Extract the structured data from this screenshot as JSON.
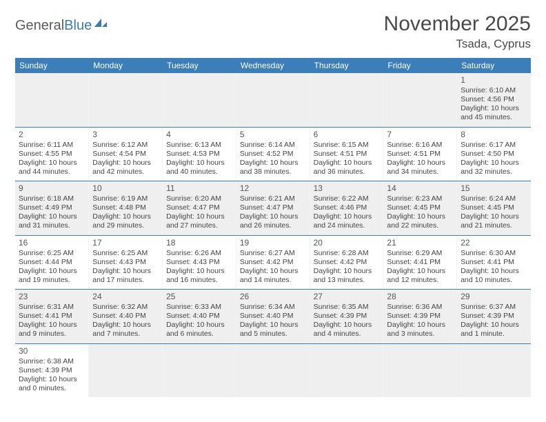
{
  "logo": {
    "general": "General",
    "blue": "Blue"
  },
  "title": "November 2025",
  "location": "Tsada, Cyprus",
  "colors": {
    "header_bg": "#3b7eb9",
    "header_text": "#ffffff",
    "row_shade": "#efefef",
    "border": "#3b7eb9",
    "text": "#454545"
  },
  "day_headers": [
    "Sunday",
    "Monday",
    "Tuesday",
    "Wednesday",
    "Thursday",
    "Friday",
    "Saturday"
  ],
  "weeks": [
    {
      "shaded": true,
      "cells": [
        null,
        null,
        null,
        null,
        null,
        null,
        {
          "n": "1",
          "rise": "Sunrise: 6:10 AM",
          "set": "Sunset: 4:56 PM",
          "dl1": "Daylight: 10 hours",
          "dl2": "and 45 minutes."
        }
      ]
    },
    {
      "shaded": false,
      "cells": [
        {
          "n": "2",
          "rise": "Sunrise: 6:11 AM",
          "set": "Sunset: 4:55 PM",
          "dl1": "Daylight: 10 hours",
          "dl2": "and 44 minutes."
        },
        {
          "n": "3",
          "rise": "Sunrise: 6:12 AM",
          "set": "Sunset: 4:54 PM",
          "dl1": "Daylight: 10 hours",
          "dl2": "and 42 minutes."
        },
        {
          "n": "4",
          "rise": "Sunrise: 6:13 AM",
          "set": "Sunset: 4:53 PM",
          "dl1": "Daylight: 10 hours",
          "dl2": "and 40 minutes."
        },
        {
          "n": "5",
          "rise": "Sunrise: 6:14 AM",
          "set": "Sunset: 4:52 PM",
          "dl1": "Daylight: 10 hours",
          "dl2": "and 38 minutes."
        },
        {
          "n": "6",
          "rise": "Sunrise: 6:15 AM",
          "set": "Sunset: 4:51 PM",
          "dl1": "Daylight: 10 hours",
          "dl2": "and 36 minutes."
        },
        {
          "n": "7",
          "rise": "Sunrise: 6:16 AM",
          "set": "Sunset: 4:51 PM",
          "dl1": "Daylight: 10 hours",
          "dl2": "and 34 minutes."
        },
        {
          "n": "8",
          "rise": "Sunrise: 6:17 AM",
          "set": "Sunset: 4:50 PM",
          "dl1": "Daylight: 10 hours",
          "dl2": "and 32 minutes."
        }
      ]
    },
    {
      "shaded": true,
      "cells": [
        {
          "n": "9",
          "rise": "Sunrise: 6:18 AM",
          "set": "Sunset: 4:49 PM",
          "dl1": "Daylight: 10 hours",
          "dl2": "and 31 minutes."
        },
        {
          "n": "10",
          "rise": "Sunrise: 6:19 AM",
          "set": "Sunset: 4:48 PM",
          "dl1": "Daylight: 10 hours",
          "dl2": "and 29 minutes."
        },
        {
          "n": "11",
          "rise": "Sunrise: 6:20 AM",
          "set": "Sunset: 4:47 PM",
          "dl1": "Daylight: 10 hours",
          "dl2": "and 27 minutes."
        },
        {
          "n": "12",
          "rise": "Sunrise: 6:21 AM",
          "set": "Sunset: 4:47 PM",
          "dl1": "Daylight: 10 hours",
          "dl2": "and 26 minutes."
        },
        {
          "n": "13",
          "rise": "Sunrise: 6:22 AM",
          "set": "Sunset: 4:46 PM",
          "dl1": "Daylight: 10 hours",
          "dl2": "and 24 minutes."
        },
        {
          "n": "14",
          "rise": "Sunrise: 6:23 AM",
          "set": "Sunset: 4:45 PM",
          "dl1": "Daylight: 10 hours",
          "dl2": "and 22 minutes."
        },
        {
          "n": "15",
          "rise": "Sunrise: 6:24 AM",
          "set": "Sunset: 4:45 PM",
          "dl1": "Daylight: 10 hours",
          "dl2": "and 21 minutes."
        }
      ]
    },
    {
      "shaded": false,
      "cells": [
        {
          "n": "16",
          "rise": "Sunrise: 6:25 AM",
          "set": "Sunset: 4:44 PM",
          "dl1": "Daylight: 10 hours",
          "dl2": "and 19 minutes."
        },
        {
          "n": "17",
          "rise": "Sunrise: 6:25 AM",
          "set": "Sunset: 4:43 PM",
          "dl1": "Daylight: 10 hours",
          "dl2": "and 17 minutes."
        },
        {
          "n": "18",
          "rise": "Sunrise: 6:26 AM",
          "set": "Sunset: 4:43 PM",
          "dl1": "Daylight: 10 hours",
          "dl2": "and 16 minutes."
        },
        {
          "n": "19",
          "rise": "Sunrise: 6:27 AM",
          "set": "Sunset: 4:42 PM",
          "dl1": "Daylight: 10 hours",
          "dl2": "and 14 minutes."
        },
        {
          "n": "20",
          "rise": "Sunrise: 6:28 AM",
          "set": "Sunset: 4:42 PM",
          "dl1": "Daylight: 10 hours",
          "dl2": "and 13 minutes."
        },
        {
          "n": "21",
          "rise": "Sunrise: 6:29 AM",
          "set": "Sunset: 4:41 PM",
          "dl1": "Daylight: 10 hours",
          "dl2": "and 12 minutes."
        },
        {
          "n": "22",
          "rise": "Sunrise: 6:30 AM",
          "set": "Sunset: 4:41 PM",
          "dl1": "Daylight: 10 hours",
          "dl2": "and 10 minutes."
        }
      ]
    },
    {
      "shaded": true,
      "cells": [
        {
          "n": "23",
          "rise": "Sunrise: 6:31 AM",
          "set": "Sunset: 4:41 PM",
          "dl1": "Daylight: 10 hours",
          "dl2": "and 9 minutes."
        },
        {
          "n": "24",
          "rise": "Sunrise: 6:32 AM",
          "set": "Sunset: 4:40 PM",
          "dl1": "Daylight: 10 hours",
          "dl2": "and 7 minutes."
        },
        {
          "n": "25",
          "rise": "Sunrise: 6:33 AM",
          "set": "Sunset: 4:40 PM",
          "dl1": "Daylight: 10 hours",
          "dl2": "and 6 minutes."
        },
        {
          "n": "26",
          "rise": "Sunrise: 6:34 AM",
          "set": "Sunset: 4:40 PM",
          "dl1": "Daylight: 10 hours",
          "dl2": "and 5 minutes."
        },
        {
          "n": "27",
          "rise": "Sunrise: 6:35 AM",
          "set": "Sunset: 4:39 PM",
          "dl1": "Daylight: 10 hours",
          "dl2": "and 4 minutes."
        },
        {
          "n": "28",
          "rise": "Sunrise: 6:36 AM",
          "set": "Sunset: 4:39 PM",
          "dl1": "Daylight: 10 hours",
          "dl2": "and 3 minutes."
        },
        {
          "n": "29",
          "rise": "Sunrise: 6:37 AM",
          "set": "Sunset: 4:39 PM",
          "dl1": "Daylight: 10 hours",
          "dl2": "and 1 minute."
        }
      ]
    },
    {
      "shaded": false,
      "last": true,
      "cells": [
        {
          "n": "30",
          "rise": "Sunrise: 6:38 AM",
          "set": "Sunset: 4:39 PM",
          "dl1": "Daylight: 10 hours",
          "dl2": "and 0 minutes."
        },
        null,
        null,
        null,
        null,
        null,
        null
      ]
    }
  ]
}
